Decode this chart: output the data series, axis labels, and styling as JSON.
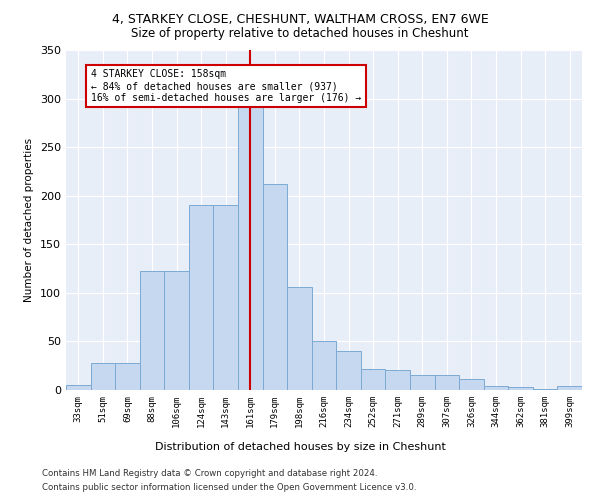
{
  "title1": "4, STARKEY CLOSE, CHESHUNT, WALTHAM CROSS, EN7 6WE",
  "title2": "Size of property relative to detached houses in Cheshunt",
  "xlabel": "Distribution of detached houses by size in Cheshunt",
  "ylabel": "Number of detached properties",
  "categories": [
    "33sqm",
    "51sqm",
    "69sqm",
    "88sqm",
    "106sqm",
    "124sqm",
    "143sqm",
    "161sqm",
    "179sqm",
    "198sqm",
    "216sqm",
    "234sqm",
    "252sqm",
    "271sqm",
    "289sqm",
    "307sqm",
    "326sqm",
    "344sqm",
    "362sqm",
    "381sqm",
    "399sqm"
  ],
  "values": [
    5,
    28,
    28,
    122,
    122,
    190,
    190,
    295,
    212,
    106,
    50,
    40,
    22,
    21,
    15,
    15,
    11,
    4,
    3,
    1,
    4
  ],
  "bar_color": "#c5d8f0",
  "bar_edge_color": "#7baad4",
  "vline_color": "#cc0000",
  "vline_index": 7.5,
  "annotation_text": "4 STARKEY CLOSE: 158sqm\n← 84% of detached houses are smaller (937)\n16% of semi-detached houses are larger (176) →",
  "annotation_box_color": "#ffffff",
  "annotation_box_edge": "#cc0000",
  "ylim": [
    0,
    350
  ],
  "yticks": [
    0,
    50,
    100,
    150,
    200,
    250,
    300,
    350
  ],
  "bg_color": "#e8eef8",
  "title1_fontsize": 9,
  "title2_fontsize": 8.5,
  "footer1": "Contains HM Land Registry data © Crown copyright and database right 2024.",
  "footer2": "Contains public sector information licensed under the Open Government Licence v3.0."
}
